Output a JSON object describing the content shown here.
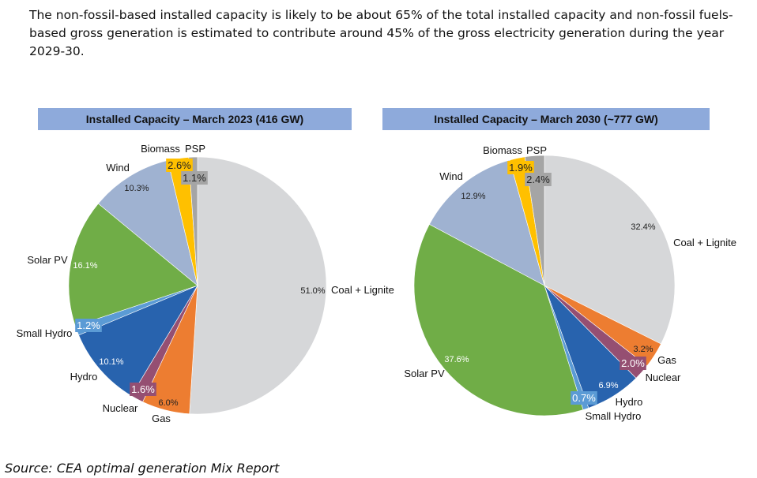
{
  "intro_text": "The non-fossil-based installed capacity is likely to be about 65% of the total installed capacity and non-fossil fuels-based gross generation is estimated to contribute around 45% of the gross electricity generation during the year 2029-30.",
  "source_text": "Source: CEA optimal generation Mix Report",
  "colors": {
    "Coal + Lignite": "#d6d7d9",
    "Gas": "#ed7d31",
    "Nuclear": "#954f72",
    "Hydro": "#2863ae",
    "Small Hydro": "#5b9bd5",
    "Solar PV": "#70ad47",
    "Wind": "#9fb2d1",
    "Biomass": "#ffc000",
    "PSP": "#a5a5a5"
  },
  "chart_data": [
    {
      "type": "pie",
      "title": "Installed Capacity – March 2023 (416 GW)",
      "unit": "%",
      "categories": [
        "Coal + Lignite",
        "Gas",
        "Nuclear",
        "Hydro",
        "Small Hydro",
        "Solar PV",
        "Wind",
        "Biomass",
        "PSP"
      ],
      "values": [
        51.0,
        6.0,
        1.6,
        10.1,
        1.2,
        16.1,
        10.3,
        2.6,
        1.1
      ],
      "value_labels": [
        "51.0%",
        "6.0%",
        "1.6%",
        "10.1%",
        "1.2%",
        "16.1%",
        "10.3%",
        "2.6%",
        "1.1%"
      ],
      "start": "12 o'clock",
      "direction": "clockwise"
    },
    {
      "type": "pie",
      "title": "Installed Capacity – March 2030 (~777 GW)",
      "unit": "%",
      "categories": [
        "Coal + Lignite",
        "Gas",
        "Nuclear",
        "Hydro",
        "Small Hydro",
        "Solar PV",
        "Wind",
        "Biomass",
        "PSP"
      ],
      "values": [
        32.4,
        3.2,
        2.0,
        6.9,
        0.7,
        37.6,
        12.9,
        1.9,
        2.4
      ],
      "value_labels": [
        "32.4%",
        "3.2%",
        "2.0%",
        "6.9%",
        "0.7%",
        "37.6%",
        "12.9%",
        "1.9%",
        "2.4%"
      ],
      "start": "12 o'clock",
      "direction": "clockwise"
    }
  ]
}
